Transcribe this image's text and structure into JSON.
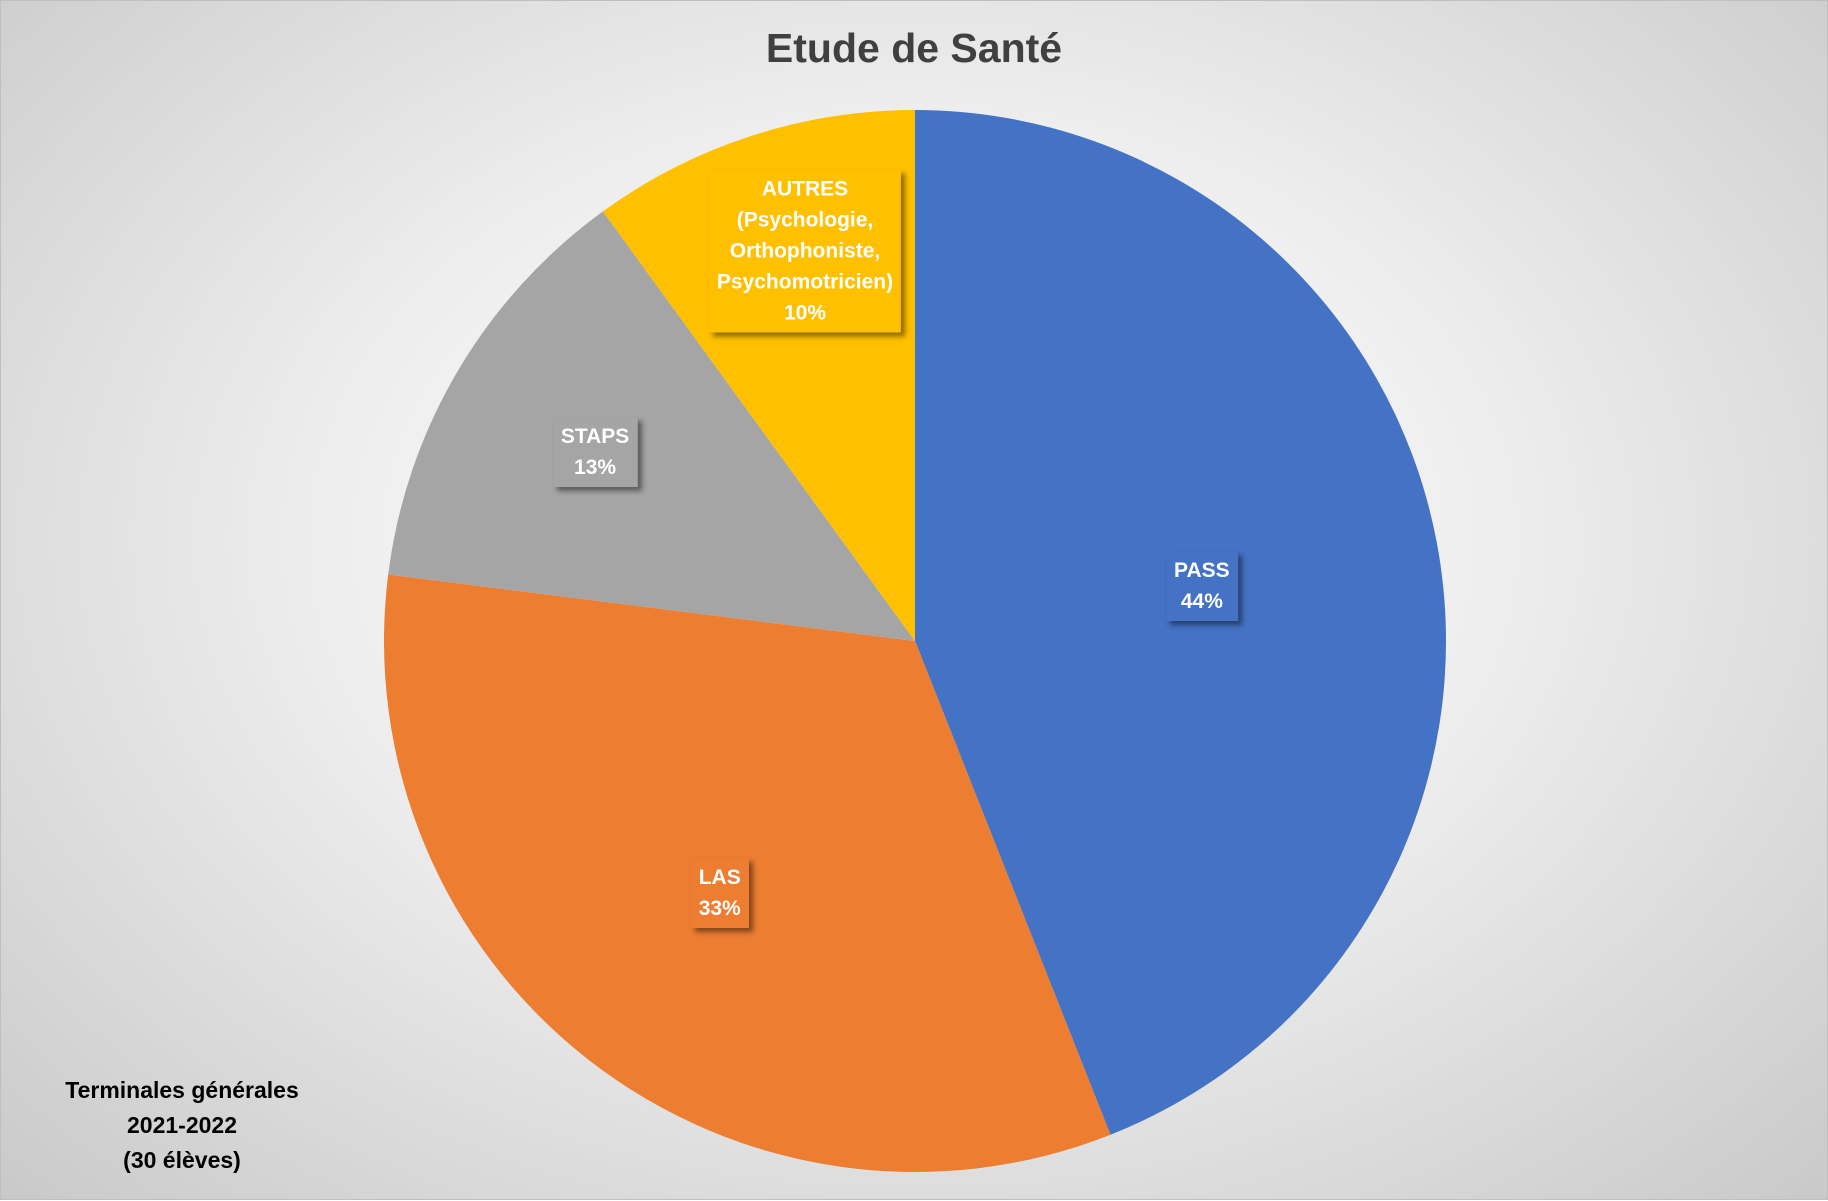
{
  "chart_data": {
    "type": "pie",
    "title": "Etude de Santé",
    "slices": [
      {
        "name": "PASS",
        "label_lines": [
          "PASS"
        ],
        "value": 44,
        "percent_label": "44%",
        "color": "#4472C4"
      },
      {
        "name": "LAS",
        "label_lines": [
          "LAS"
        ],
        "value": 33,
        "percent_label": "33%",
        "color": "#ED7D31"
      },
      {
        "name": "STAPS",
        "label_lines": [
          "STAPS"
        ],
        "value": 13,
        "percent_label": "13%",
        "color": "#A5A5A5"
      },
      {
        "name": "AUTRES",
        "label_lines": [
          "AUTRES",
          "(Psychologie,",
          "Orthophoniste,",
          "Psychomotricien)"
        ],
        "value": 10,
        "percent_label": "10%",
        "color": "#FFC000"
      }
    ],
    "start_angle": "12 o'clock",
    "direction": "clockwise",
    "legend": "none"
  },
  "footnote": {
    "lines": [
      "Terminales générales",
      "2021-2022",
      "(30 élèves)"
    ]
  }
}
